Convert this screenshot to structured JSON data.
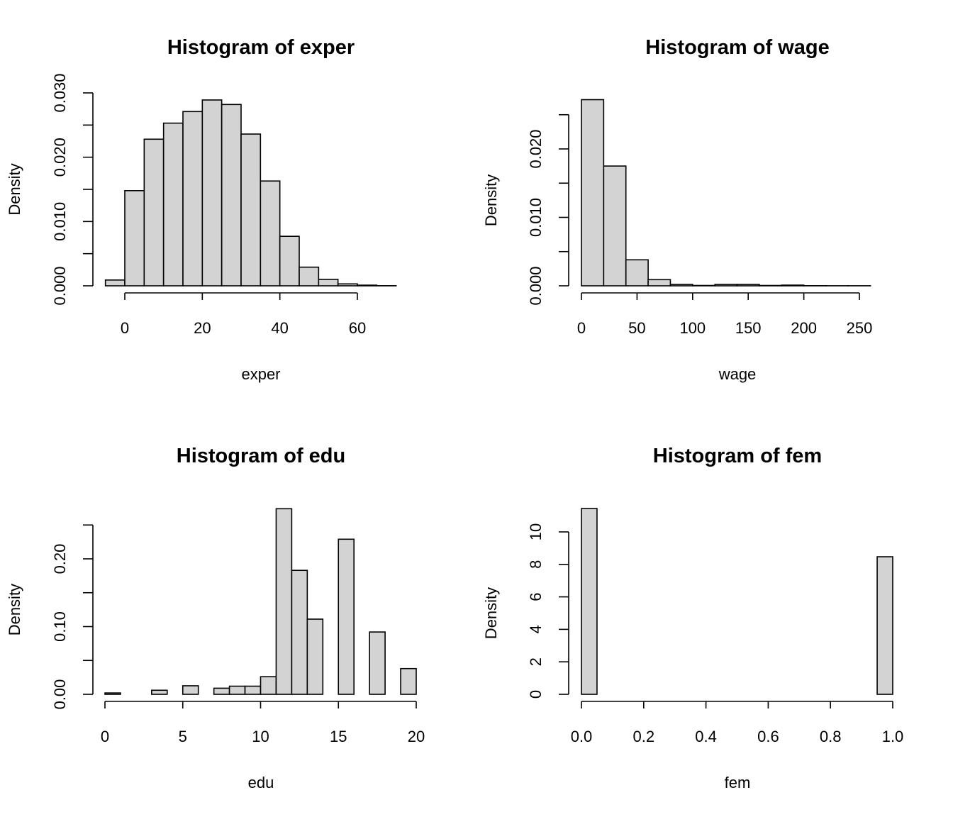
{
  "chart_data": [
    {
      "type": "bar",
      "title": "Histogram of exper",
      "xlabel": "exper",
      "ylabel": "Density",
      "bin_width": 5,
      "bin_start": -5,
      "values": [
        0.0009,
        0.0148,
        0.0228,
        0.0253,
        0.0271,
        0.0289,
        0.0282,
        0.0236,
        0.0163,
        0.0077,
        0.0029,
        0.001,
        0.0003,
        0.0001,
        2e-05,
        0.0
      ],
      "xticks": [
        0,
        20,
        40,
        60
      ],
      "xtick_labels": [
        "0",
        "20",
        "40",
        "60"
      ],
      "yticks": [
        0,
        0.005,
        0.01,
        0.015,
        0.02,
        0.025,
        0.03
      ],
      "ytick_labels": [
        "0.000",
        "",
        "0.010",
        "",
        "0.020",
        "",
        "0.030"
      ],
      "xlim": [
        -5,
        75
      ],
      "ylim": [
        0,
        0.03
      ]
    },
    {
      "type": "bar",
      "title": "Histogram of wage",
      "xlabel": "wage",
      "ylabel": "Density",
      "bin_width": 20,
      "bin_start": 0,
      "values": [
        0.0272,
        0.0175,
        0.0038,
        0.0009,
        0.0002,
        5e-05,
        0.0002,
        0.0002,
        5e-05,
        0.0001,
        2e-05,
        1e-05,
        1e-05,
        0.0
      ],
      "xticks": [
        0,
        50,
        100,
        150,
        200,
        250
      ],
      "xtick_labels": [
        "0",
        "50",
        "100",
        "150",
        "200",
        "250"
      ],
      "yticks": [
        0,
        0.005,
        0.01,
        0.015,
        0.02,
        0.025
      ],
      "ytick_labels": [
        "0.000",
        "",
        "0.010",
        "",
        "0.020",
        ""
      ],
      "xlim": [
        0,
        280
      ],
      "ylim": [
        0,
        0.025
      ]
    },
    {
      "type": "bar",
      "title": "Histogram of edu",
      "xlabel": "edu",
      "ylabel": "Density",
      "bin_width": 1,
      "bin_start": 0,
      "values": [
        0.002,
        0,
        0,
        0.006,
        0,
        0.0126,
        0,
        0.009,
        0.012,
        0.012,
        0.026,
        0.274,
        0.183,
        0.111,
        0,
        0.229,
        0,
        0.092,
        0,
        0.038
      ],
      "xticks": [
        0,
        5,
        10,
        15,
        20
      ],
      "xtick_labels": [
        "0",
        "5",
        "10",
        "15",
        "20"
      ],
      "yticks": [
        0,
        0.05,
        0.1,
        0.15,
        0.2,
        0.25
      ],
      "ytick_labels": [
        "0.00",
        "",
        "0.10",
        "",
        "0.20",
        ""
      ],
      "xlim": [
        0,
        20
      ],
      "ylim": [
        0,
        0.25
      ]
    },
    {
      "type": "bar",
      "title": "Histogram of fem",
      "xlabel": "fem",
      "ylabel": "Density",
      "bin_width": 0.05,
      "bin_start": 0,
      "values": [
        11.44,
        0,
        0,
        0,
        0,
        0,
        0,
        0,
        0,
        0,
        0,
        0,
        0,
        0,
        0,
        0,
        0,
        0,
        0,
        8.47
      ],
      "xticks": [
        0,
        0.2,
        0.4,
        0.6,
        0.8,
        1.0
      ],
      "xtick_labels": [
        "0.0",
        "0.2",
        "0.4",
        "0.6",
        "0.8",
        "1.0"
      ],
      "yticks": [
        0,
        2,
        4,
        6,
        8,
        10
      ],
      "ytick_labels": [
        "0",
        "2",
        "4",
        "6",
        "8",
        "10"
      ],
      "xlim": [
        0,
        1
      ],
      "ylim": [
        0,
        10
      ]
    }
  ]
}
